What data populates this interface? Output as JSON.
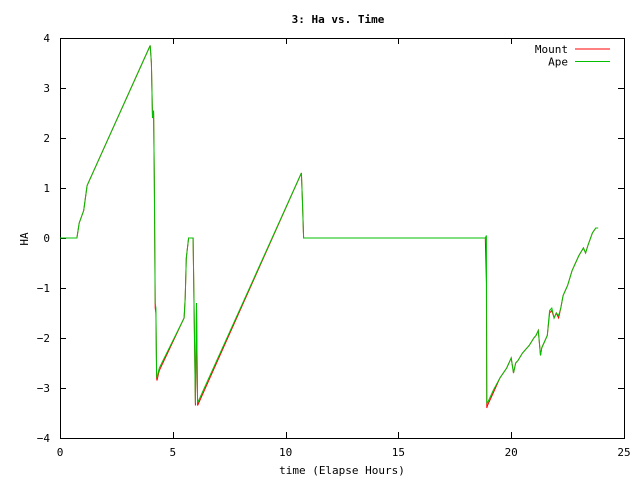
{
  "chart_data": {
    "type": "line",
    "title": "3: Ha vs. Time",
    "xlabel": "time (Elapse Hours)",
    "ylabel": "HA",
    "xlim": [
      0,
      25
    ],
    "ylim": [
      -4,
      4
    ],
    "xticks": [
      0,
      5,
      10,
      15,
      20,
      25
    ],
    "yticks": [
      -4,
      -3,
      -2,
      -1,
      0,
      1,
      2,
      3,
      4
    ],
    "grid": false,
    "legend_position": "top-right",
    "series": [
      {
        "name": "Mount",
        "color": "#ff0000",
        "x": [
          0,
          0.75,
          0.85,
          1.05,
          1.2,
          4.0,
          4.05,
          4.1,
          4.15,
          4.18,
          4.22,
          4.25,
          4.28,
          4.3,
          4.35,
          4.4,
          5.5,
          5.55,
          5.6,
          5.7,
          5.75,
          5.8,
          5.85,
          5.9,
          6.0,
          6.02,
          6.05,
          6.1,
          6.15,
          10.7,
          10.75,
          10.8,
          18.85,
          18.9,
          18.92,
          18.95,
          19.0,
          19.2,
          19.5,
          19.8,
          20.0,
          20.1,
          20.2,
          20.3,
          20.5,
          20.8,
          21.0,
          21.1,
          21.2,
          21.3,
          21.35,
          21.4,
          21.6,
          21.7,
          21.8,
          21.9,
          22.0,
          22.1,
          22.2,
          22.3,
          22.5,
          22.7,
          23.0,
          23.2,
          23.3,
          23.4,
          23.6,
          23.75,
          23.85
        ],
        "y": [
          0,
          0,
          0.3,
          0.55,
          1.05,
          3.85,
          3.5,
          2.4,
          2.5,
          1.2,
          -1.4,
          -1.5,
          -2.8,
          -2.85,
          -2.75,
          -2.65,
          -1.6,
          -1.2,
          -0.4,
          0,
          0,
          0,
          0,
          0,
          -3.35,
          -2.7,
          -1.4,
          -3.35,
          -3.3,
          1.3,
          0.7,
          0,
          0,
          -0.9,
          -3.4,
          -3.35,
          -3.3,
          -3.1,
          -2.8,
          -2.6,
          -2.4,
          -2.7,
          -2.5,
          -2.45,
          -2.3,
          -2.15,
          -2.0,
          -1.95,
          -1.85,
          -2.35,
          -2.2,
          -2.15,
          -1.95,
          -1.5,
          -1.45,
          -1.6,
          -1.5,
          -1.6,
          -1.4,
          -1.15,
          -0.95,
          -0.65,
          -0.35,
          -0.2,
          -0.3,
          -0.15,
          0.1,
          0.2,
          0.2
        ]
      },
      {
        "name": "Ape",
        "color": "#00c000",
        "x": [
          0,
          0.75,
          0.85,
          1.05,
          1.2,
          4.0,
          4.05,
          4.1,
          4.15,
          4.18,
          4.22,
          4.25,
          4.28,
          4.3,
          4.35,
          4.4,
          5.5,
          5.55,
          5.6,
          5.7,
          5.75,
          5.8,
          5.85,
          5.9,
          6.0,
          6.02,
          6.05,
          6.1,
          6.15,
          10.7,
          10.75,
          10.8,
          18.85,
          18.9,
          18.92,
          18.95,
          19.0,
          19.2,
          19.5,
          19.8,
          20.0,
          20.1,
          20.2,
          20.3,
          20.5,
          20.8,
          21.0,
          21.1,
          21.2,
          21.3,
          21.35,
          21.4,
          21.6,
          21.7,
          21.8,
          21.9,
          22.0,
          22.1,
          22.2,
          22.3,
          22.5,
          22.7,
          23.0,
          23.2,
          23.3,
          23.4,
          23.6,
          23.75,
          23.85
        ],
        "y": [
          0,
          0,
          0.3,
          0.55,
          1.05,
          3.85,
          3.5,
          2.4,
          2.55,
          1.2,
          -1.3,
          -1.4,
          -2.75,
          -2.8,
          -2.7,
          -2.6,
          -1.6,
          -1.2,
          -0.4,
          0,
          0,
          0,
          0,
          0,
          -3.3,
          -2.6,
          -1.3,
          -3.3,
          -3.25,
          1.3,
          0.7,
          0,
          0,
          0.05,
          -3.3,
          -3.3,
          -3.25,
          -3.05,
          -2.8,
          -2.6,
          -2.4,
          -2.7,
          -2.5,
          -2.45,
          -2.3,
          -2.15,
          -2.0,
          -1.95,
          -1.85,
          -2.35,
          -2.2,
          -2.15,
          -1.95,
          -1.45,
          -1.4,
          -1.6,
          -1.5,
          -1.55,
          -1.4,
          -1.15,
          -0.95,
          -0.65,
          -0.35,
          -0.2,
          -0.3,
          -0.15,
          0.1,
          0.2,
          0.2
        ]
      }
    ]
  }
}
